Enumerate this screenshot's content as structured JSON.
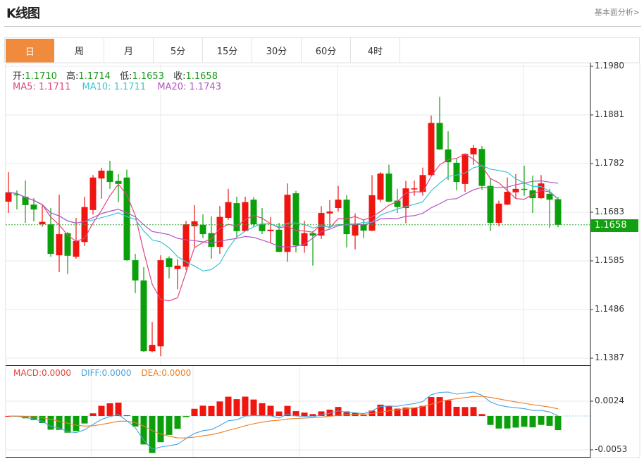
{
  "header": {
    "title": "K线图",
    "fundamental_link": "基本面分析>"
  },
  "tabs": [
    {
      "label": "日",
      "active": true
    },
    {
      "label": "周"
    },
    {
      "label": "月"
    },
    {
      "label": "5分"
    },
    {
      "label": "15分"
    },
    {
      "label": "30分"
    },
    {
      "label": "60分"
    },
    {
      "label": "4时"
    }
  ],
  "legend": {
    "open_label": "开:",
    "open": "1.1710",
    "high_label": "高:",
    "high": "1.1714",
    "low_label": "低:",
    "low": "1.1653",
    "close_label": "收:",
    "close": "1.1658",
    "ma5": "MA5: 1.1711",
    "ma10": "MA10: 1.1711",
    "ma20": "MA20: 1.1743"
  },
  "macd_legend": {
    "macd": "MACD:0.0000",
    "diff": "DIFF:0.0000",
    "dea": "DEA:0.0000"
  },
  "current_price": "1.1658",
  "colors": {
    "up": "#f0150f",
    "down": "#0ba00b",
    "ma5": "#e0457f",
    "ma10": "#3cc5d2",
    "ma20": "#b255c4",
    "diff": "#4aa3e0",
    "dea": "#f07c20",
    "active_tab": "#f08a3c"
  },
  "chart_data": {
    "type": "candlestick",
    "price_axis": {
      "ticks": [
        "1.1980",
        "1.1881",
        "1.1782",
        "1.1683",
        "1.1585",
        "1.1486",
        "1.1387"
      ],
      "ylim": [
        1.1387,
        1.198
      ]
    },
    "macd_axis": {
      "ticks": [
        "0.0024",
        "-0.0053"
      ]
    },
    "up_color_meaning": "red = rising",
    "candles": [
      [
        1.1705,
        1.1765,
        1.1682,
        1.1724
      ],
      [
        1.172,
        1.1728,
        1.1689,
        1.1719
      ],
      [
        1.1715,
        1.1748,
        1.1662,
        1.1698
      ],
      [
        1.1699,
        1.1712,
        1.1665,
        1.1689
      ],
      [
        1.1659,
        1.1698,
        1.1654,
        1.1664
      ],
      [
        1.1659,
        1.1692,
        1.1593,
        1.1599
      ],
      [
        1.1596,
        1.1719,
        1.1562,
        1.1639
      ],
      [
        1.1641,
        1.1643,
        1.1558,
        1.1595
      ],
      [
        1.1593,
        1.1672,
        1.1589,
        1.1625
      ],
      [
        1.1623,
        1.1715,
        1.1615,
        1.1694
      ],
      [
        1.1688,
        1.1759,
        1.1679,
        1.1754
      ],
      [
        1.1752,
        1.1774,
        1.1711,
        1.1768
      ],
      [
        1.1768,
        1.1788,
        1.1731,
        1.1745
      ],
      [
        1.1747,
        1.1761,
        1.1704,
        1.1741
      ],
      [
        1.1754,
        1.177,
        1.1585,
        1.1586
      ],
      [
        1.1586,
        1.1599,
        1.1519,
        1.1545
      ],
      [
        1.1545,
        1.1572,
        1.14,
        1.1401
      ],
      [
        1.1401,
        1.146,
        1.1399,
        1.1414
      ],
      [
        1.1411,
        1.1596,
        1.1391,
        1.1586
      ],
      [
        1.159,
        1.1594,
        1.1549,
        1.1572
      ],
      [
        1.1568,
        1.1588,
        1.1527,
        1.1575
      ],
      [
        1.1573,
        1.1666,
        1.1566,
        1.1659
      ],
      [
        1.1655,
        1.1698,
        1.1611,
        1.1665
      ],
      [
        1.1658,
        1.1679,
        1.1631,
        1.1639
      ],
      [
        1.1641,
        1.1675,
        1.1589,
        1.1613
      ],
      [
        1.1613,
        1.1696,
        1.1599,
        1.1674
      ],
      [
        1.1672,
        1.1731,
        1.1668,
        1.1704
      ],
      [
        1.1702,
        1.1715,
        1.1632,
        1.1645
      ],
      [
        1.1645,
        1.1715,
        1.1644,
        1.1704
      ],
      [
        1.1709,
        1.1714,
        1.1654,
        1.1659
      ],
      [
        1.1659,
        1.1692,
        1.1639,
        1.1645
      ],
      [
        1.1645,
        1.1674,
        1.1621,
        1.1648
      ],
      [
        1.1648,
        1.1662,
        1.1602,
        1.1603
      ],
      [
        1.1603,
        1.1742,
        1.1583,
        1.1719
      ],
      [
        1.1722,
        1.1727,
        1.1602,
        1.1616
      ],
      [
        1.1615,
        1.1666,
        1.1601,
        1.1641
      ],
      [
        1.1641,
        1.1645,
        1.1575,
        1.1636
      ],
      [
        1.1636,
        1.1696,
        1.1629,
        1.1682
      ],
      [
        1.1681,
        1.1708,
        1.1652,
        1.1685
      ],
      [
        1.1692,
        1.1737,
        1.1685,
        1.1709
      ],
      [
        1.1709,
        1.1718,
        1.1612,
        1.1639
      ],
      [
        1.1636,
        1.1681,
        1.1608,
        1.1659
      ],
      [
        1.1659,
        1.1669,
        1.1631,
        1.1646
      ],
      [
        1.1646,
        1.1759,
        1.1645,
        1.1718
      ],
      [
        1.1709,
        1.1765,
        1.1704,
        1.1762
      ],
      [
        1.1762,
        1.178,
        1.1704,
        1.1705
      ],
      [
        1.1707,
        1.1731,
        1.1682,
        1.1694
      ],
      [
        1.1692,
        1.1747,
        1.1661,
        1.1732
      ],
      [
        1.1731,
        1.1748,
        1.1717,
        1.1732
      ],
      [
        1.1725,
        1.1774,
        1.1717,
        1.1759
      ],
      [
        1.1759,
        1.188,
        1.1758,
        1.1865
      ],
      [
        1.1865,
        1.1918,
        1.181,
        1.1811
      ],
      [
        1.1811,
        1.1848,
        1.1749,
        1.1785
      ],
      [
        1.1784,
        1.1792,
        1.1728,
        1.1745
      ],
      [
        1.1741,
        1.1803,
        1.1725,
        1.1802
      ],
      [
        1.1801,
        1.182,
        1.178,
        1.1814
      ],
      [
        1.1812,
        1.1818,
        1.1729,
        1.1737
      ],
      [
        1.1737,
        1.1752,
        1.1645,
        1.1662
      ],
      [
        1.1662,
        1.1707,
        1.1655,
        1.1701
      ],
      [
        1.1699,
        1.1754,
        1.1698,
        1.1725
      ],
      [
        1.1724,
        1.1761,
        1.1711,
        1.1731
      ],
      [
        1.1731,
        1.1778,
        1.1717,
        1.173
      ],
      [
        1.1728,
        1.1758,
        1.1682,
        1.1712
      ],
      [
        1.1712,
        1.1759,
        1.1711,
        1.1742
      ],
      [
        1.1721,
        1.1731,
        1.1652,
        1.1709
      ],
      [
        1.171,
        1.1714,
        1.1653,
        1.1658
      ]
    ],
    "candle_fields": [
      "open",
      "high",
      "low",
      "close"
    ],
    "indicators": [
      "MA5",
      "MA10",
      "MA20",
      "MACD(12,26,9)"
    ]
  }
}
